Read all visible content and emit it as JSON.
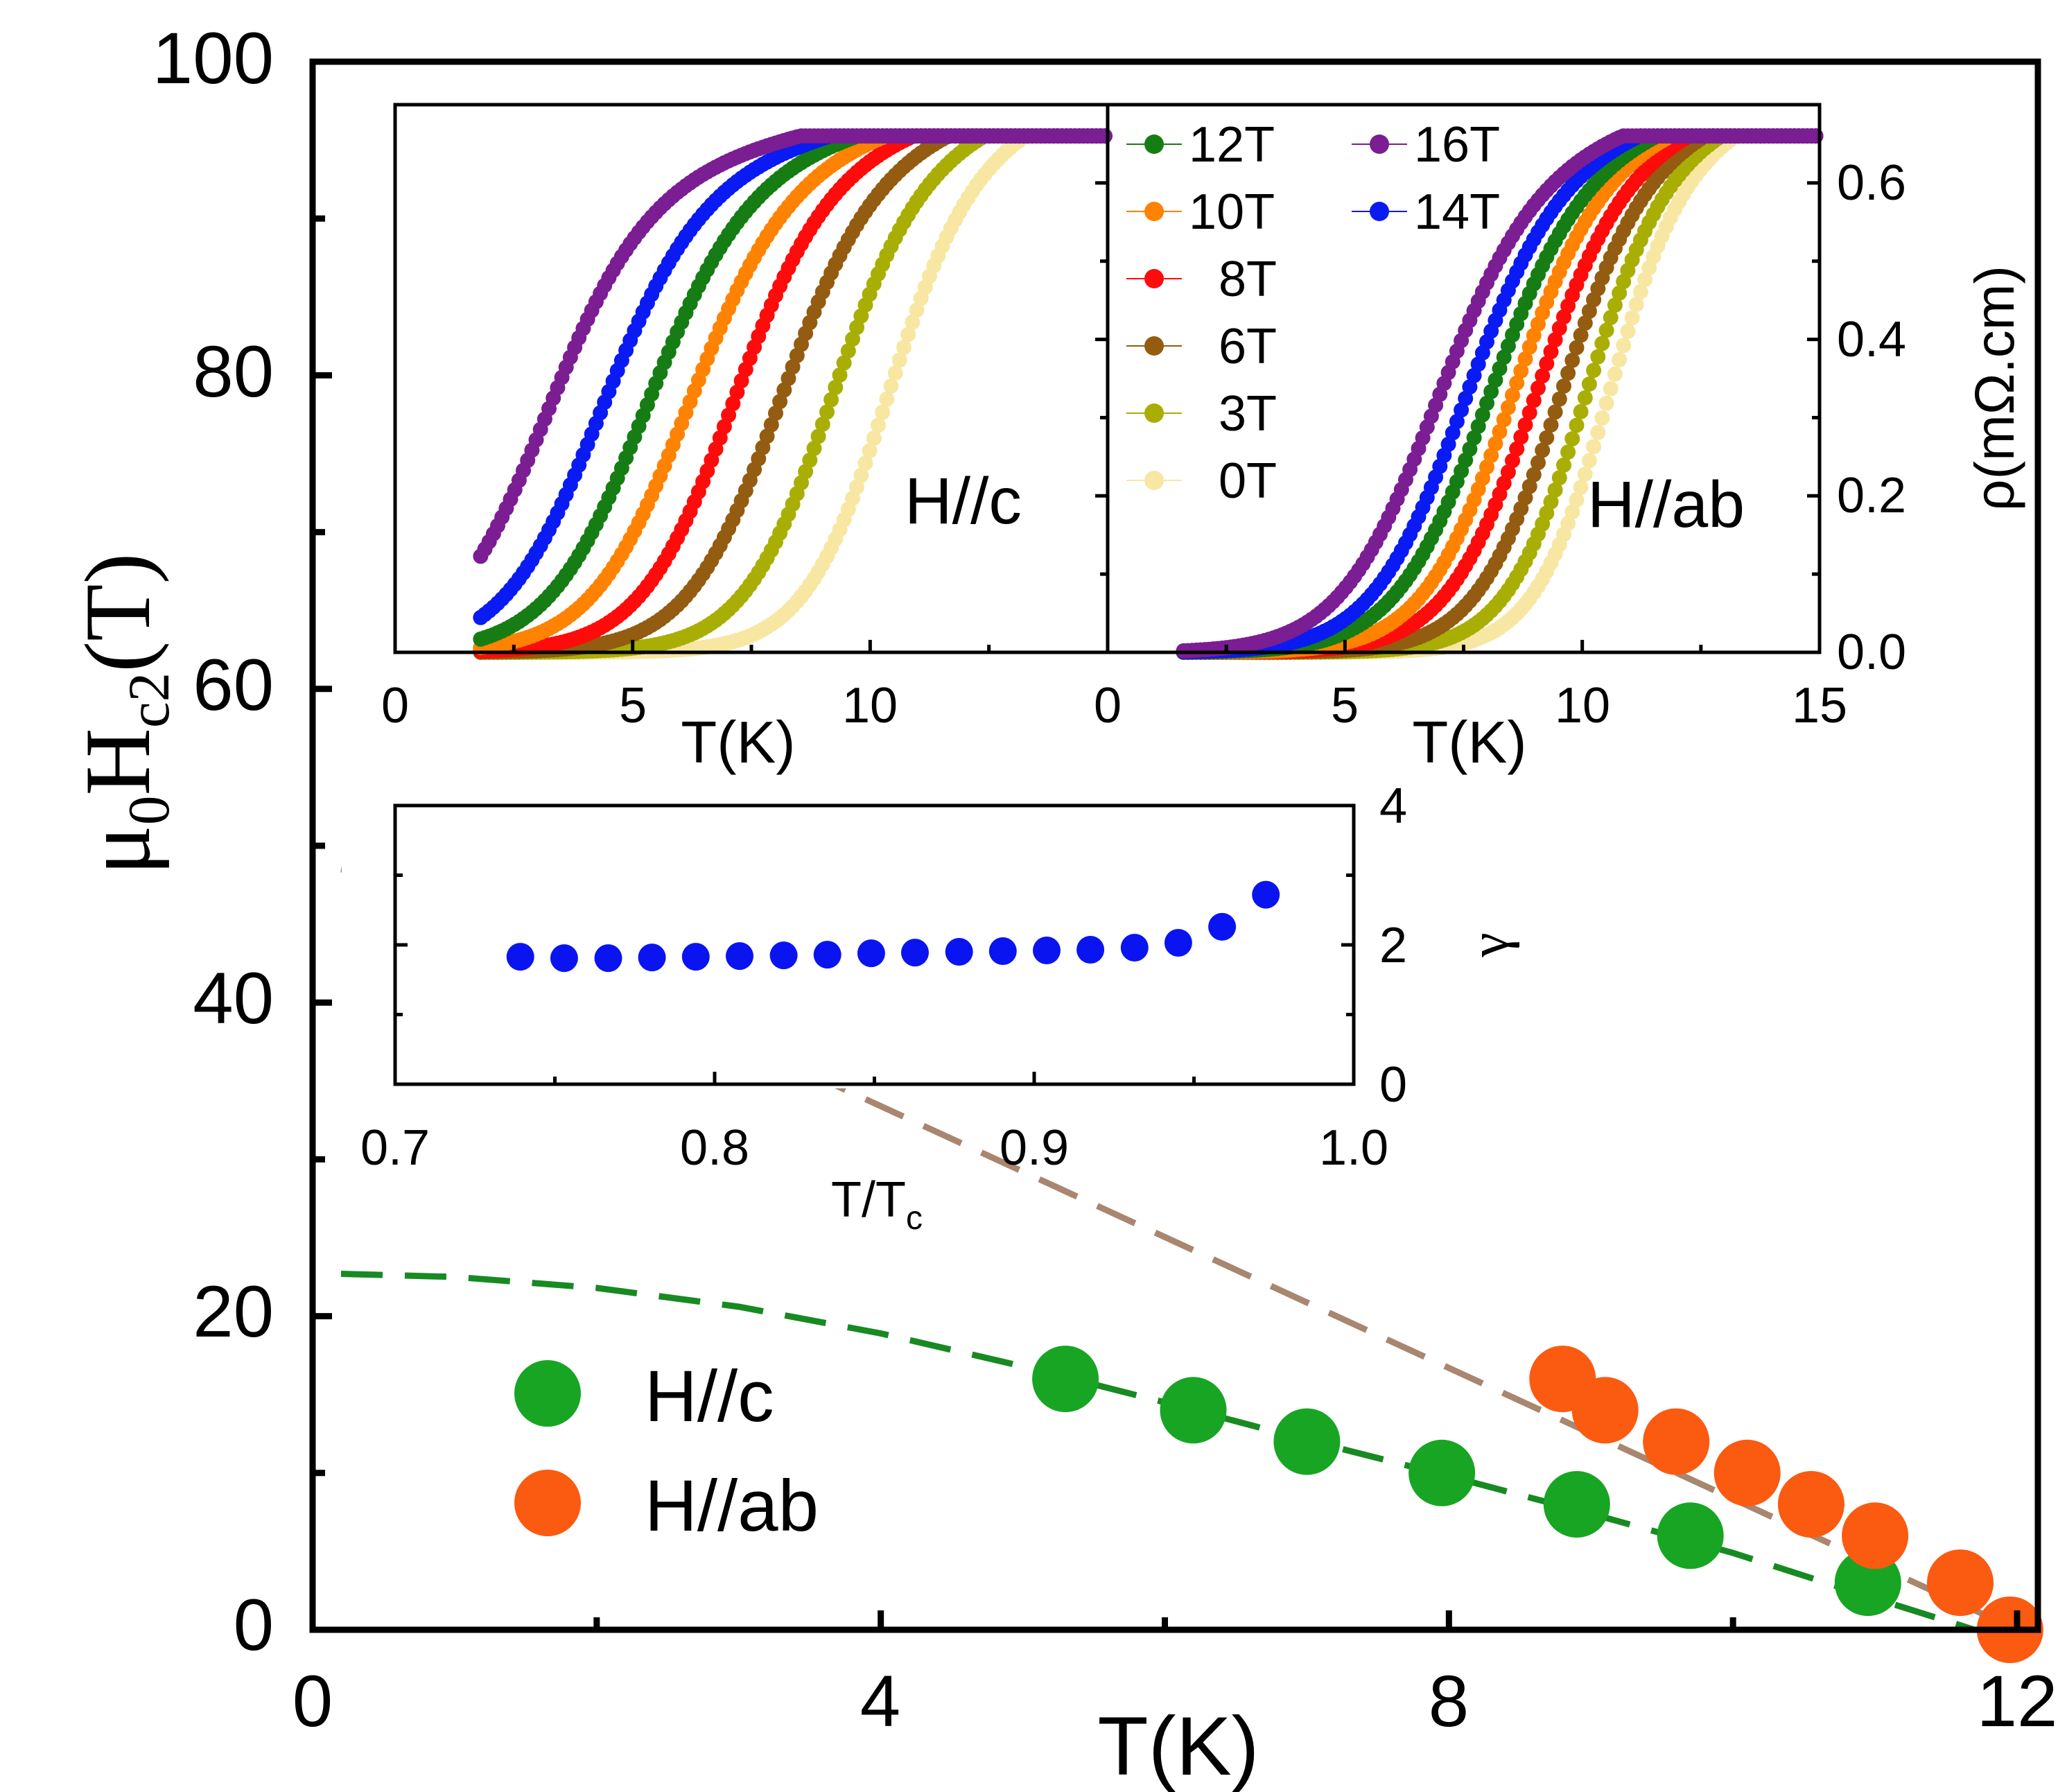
{
  "chart_data": [
    {
      "id": "main",
      "type": "scatter",
      "xlabel": "T(K)",
      "ylabel": {
        "base": "μ",
        "sub0": "0",
        "h": "H",
        "sub1": "c2",
        "unit": "(T)"
      },
      "xlim": [
        0,
        12
      ],
      "ylim": [
        0,
        100
      ],
      "xticks": [
        "0",
        "4",
        "8",
        "12"
      ],
      "yticks": [
        "0",
        "20",
        "40",
        "60",
        "80",
        "100"
      ],
      "legend": {
        "position": "lower-left",
        "entries": [
          "H//c",
          "H//ab"
        ]
      },
      "series": [
        {
          "name": "H//c",
          "color": "#18a524",
          "marker": "circle",
          "x": [
            5.3,
            6.2,
            7.0,
            7.95,
            8.9,
            9.7,
            10.95
          ],
          "y": [
            16.0,
            14.0,
            12.0,
            10.0,
            8.0,
            6.0,
            3.0
          ]
        },
        {
          "name": "H//ab",
          "color": "#fb5a11",
          "marker": "circle",
          "x": [
            8.8,
            9.1,
            9.6,
            10.1,
            10.55,
            11.0,
            11.6,
            11.95
          ],
          "y": [
            16.0,
            14.0,
            12.0,
            10.0,
            8.0,
            6.0,
            3.0,
            0.0
          ]
        }
      ],
      "fits": [
        {
          "name": "H//c fit",
          "color": "#178a22",
          "dash": true,
          "x": [
            0.2,
            1,
            2,
            3,
            4,
            5,
            6,
            7,
            8,
            9,
            10,
            11,
            11.7
          ],
          "y": [
            22.7,
            22.5,
            21.8,
            20.6,
            18.9,
            16.8,
            14.5,
            12.1,
            9.8,
            7.4,
            4.9,
            2.0,
            0
          ]
        },
        {
          "name": "H//ab fit",
          "color": "#a88670",
          "dash": true,
          "x": [
            0.2,
            0.5,
            12.0
          ],
          "y": [
            48.5,
            48.0,
            0
          ]
        }
      ]
    },
    {
      "id": "inset-rho-c",
      "type": "line",
      "label": "H//c",
      "xlabel": "T(K)",
      "xlim": [
        0,
        15
      ],
      "ylim": [
        0,
        0.7
      ],
      "xticks": [
        "0",
        "5",
        "10"
      ],
      "series": [
        {
          "name": "16T",
          "color": "#7b1d93",
          "tc": 3.0,
          "start": 1.8,
          "width": 1.05
        },
        {
          "name": "14T",
          "color": "#0a1af2",
          "tc": 4.15,
          "start": 1.8,
          "width": 1.05
        },
        {
          "name": "12T",
          "color": "#157d14",
          "tc": 5.1,
          "start": 1.8,
          "width": 1.05
        },
        {
          "name": "10T",
          "color": "#ff8200",
          "tc": 6.0,
          "start": 1.8,
          "width": 1.05
        },
        {
          "name": "8T",
          "color": "#ff0b0b",
          "tc": 6.95,
          "start": 1.8,
          "width": 1.0
        },
        {
          "name": "6T",
          "color": "#935c10",
          "tc": 7.95,
          "start": 1.8,
          "width": 1.0
        },
        {
          "name": "3T",
          "color": "#a9ae05",
          "tc": 9.05,
          "start": 1.8,
          "width": 0.95
        },
        {
          "name": "0T",
          "color": "#f7e7a2",
          "tc": 10.25,
          "start": 1.8,
          "width": 0.9
        }
      ]
    },
    {
      "id": "inset-rho-ab",
      "type": "line",
      "label": "H//ab",
      "xlabel": "T(K)",
      "y2label": "ρ(mΩ.cm)",
      "xlim": [
        0,
        15
      ],
      "ylim": [
        0,
        0.7
      ],
      "xticks": [
        "0",
        "5",
        "10",
        "15"
      ],
      "yticks": [
        "0.0",
        "0.2",
        "0.4",
        "0.6"
      ],
      "series": [
        {
          "name": "16T",
          "color": "#7b1d93",
          "tc": 6.75,
          "start": 1.6,
          "width": 1.05
        },
        {
          "name": "14T",
          "color": "#0a1af2",
          "tc": 7.35,
          "start": 1.6,
          "width": 1.0
        },
        {
          "name": "12T",
          "color": "#157d14",
          "tc": 7.85,
          "start": 1.6,
          "width": 1.0
        },
        {
          "name": "10T",
          "color": "#ff8200",
          "tc": 8.35,
          "start": 1.6,
          "width": 0.95
        },
        {
          "name": "8T",
          "color": "#ff0b0b",
          "tc": 8.85,
          "start": 1.6,
          "width": 0.95
        },
        {
          "name": "6T",
          "color": "#935c10",
          "tc": 9.4,
          "start": 1.6,
          "width": 0.9
        },
        {
          "name": "3T",
          "color": "#a9ae05",
          "tc": 9.95,
          "start": 1.6,
          "width": 0.85
        },
        {
          "name": "0T",
          "color": "#f7e7a2",
          "tc": 10.45,
          "start": 1.6,
          "width": 0.8
        }
      ],
      "legend": {
        "col1": [
          "12T",
          "10T",
          "8T",
          "6T",
          "3T",
          "0T"
        ],
        "col2": [
          "16T",
          "14T"
        ]
      }
    },
    {
      "id": "inset-gamma",
      "type": "scatter",
      "xlabel": {
        "base": "T/T",
        "sub": "c"
      },
      "ylabel": "γ",
      "xlim": [
        0.7,
        1.0
      ],
      "ylim": [
        0,
        4
      ],
      "xticks": [
        "0.7",
        "0.8",
        "0.9",
        "1.0"
      ],
      "yticks": [
        "0",
        "2",
        "4"
      ],
      "series": [
        {
          "name": "γ",
          "color": "#0a14f0",
          "x": [
            0.7392,
            0.7529,
            0.7667,
            0.7804,
            0.7941,
            0.8078,
            0.8216,
            0.8353,
            0.849,
            0.8627,
            0.8765,
            0.8902,
            0.9039,
            0.9176,
            0.9314,
            0.9451,
            0.9588,
            0.9725
          ],
          "y": [
            1.83,
            1.81,
            1.81,
            1.82,
            1.83,
            1.84,
            1.85,
            1.86,
            1.88,
            1.89,
            1.9,
            1.91,
            1.92,
            1.93,
            1.96,
            2.03,
            2.26,
            2.72
          ]
        }
      ]
    }
  ]
}
